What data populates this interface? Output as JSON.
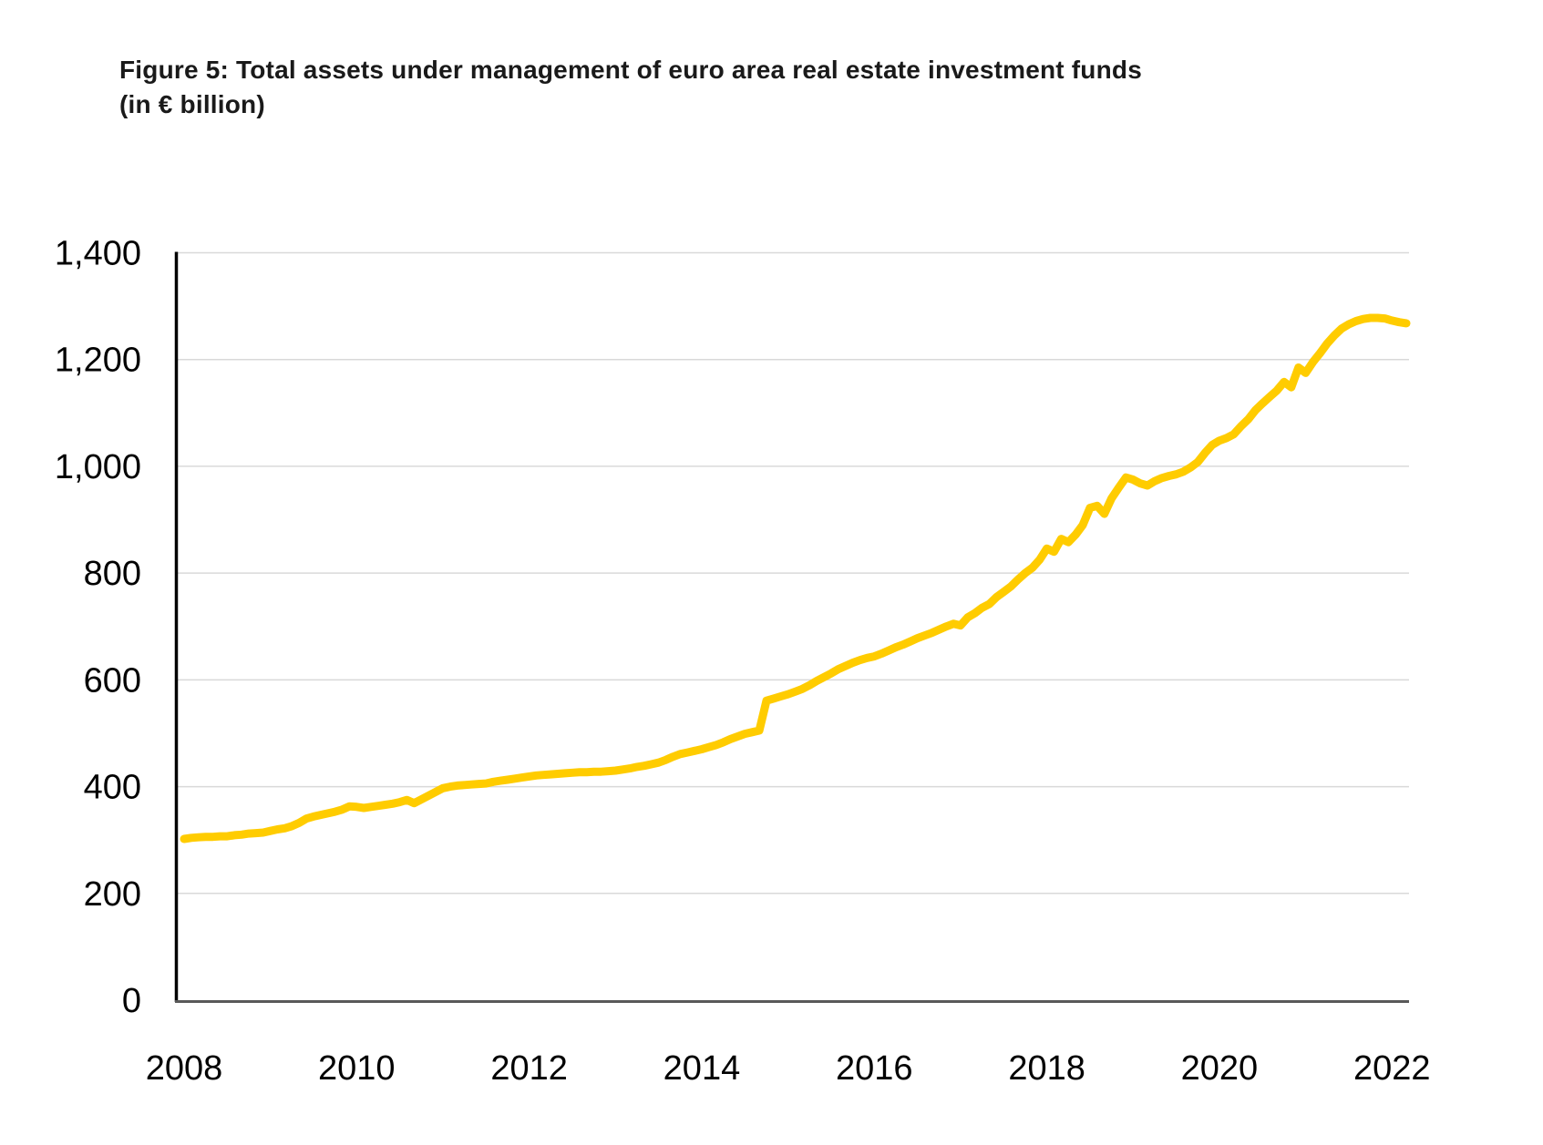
{
  "title": {
    "line1": "Figure 5: Total assets under management of euro area real estate investment funds",
    "line2": "(in € billion)"
  },
  "colors": {
    "line": "#FFCC00",
    "gridline": "#D9D9D9",
    "y_axis": "#000000",
    "x_axis": "#595959",
    "text": "#000000"
  },
  "chart_data": {
    "type": "line",
    "title": "Figure 5: Total assets under management of euro area real estate investment funds (in € billion)",
    "series_name": "Total assets under management of euro area real estate investment funds",
    "unit": "EUR billion",
    "frequency": "monthly",
    "x_start": {
      "year": 2008,
      "month": 1
    },
    "x_end": {
      "year": 2022,
      "month": 3
    },
    "values": [
      302,
      304,
      305,
      306,
      306,
      307,
      307,
      309,
      310,
      312,
      313,
      314,
      317,
      320,
      322,
      326,
      332,
      340,
      344,
      347,
      350,
      353,
      357,
      363,
      362,
      360,
      362,
      364,
      366,
      368,
      371,
      375,
      369,
      376,
      383,
      390,
      397,
      400,
      402,
      403,
      404,
      405,
      406,
      409,
      411,
      413,
      415,
      417,
      419,
      421,
      422,
      423,
      424,
      425,
      426,
      427,
      427,
      428,
      428,
      429,
      430,
      432,
      434,
      437,
      439,
      442,
      445,
      450,
      456,
      461,
      464,
      467,
      470,
      474,
      478,
      483,
      489,
      494,
      499,
      502,
      505,
      561,
      565,
      569,
      573,
      578,
      583,
      590,
      598,
      605,
      612,
      620,
      626,
      632,
      637,
      641,
      644,
      649,
      655,
      661,
      666,
      672,
      678,
      683,
      688,
      694,
      700,
      705,
      702,
      717,
      725,
      735,
      742,
      755,
      765,
      775,
      788,
      800,
      810,
      825,
      846,
      840,
      864,
      858,
      872,
      890,
      922,
      926,
      911,
      940,
      960,
      979,
      975,
      968,
      964,
      972,
      978,
      982,
      985,
      990,
      998,
      1008,
      1025,
      1040,
      1048,
      1053,
      1060,
      1075,
      1088,
      1105,
      1118,
      1130,
      1142,
      1158,
      1148,
      1185,
      1175,
      1195,
      1212,
      1230,
      1245,
      1258,
      1266,
      1272,
      1276,
      1278,
      1278,
      1277,
      1273,
      1270,
      1268
    ],
    "annotations": [
      "Level jump from ~505 to ~560 between Sep 2014 and Oct 2014"
    ],
    "xlabel": "",
    "ylabel": "",
    "x_tick_labels": [
      "2008",
      "2010",
      "2012",
      "2014",
      "2016",
      "2018",
      "2020",
      "2022"
    ],
    "x_tick_years": [
      2008,
      2010,
      2012,
      2014,
      2016,
      2018,
      2020,
      2022
    ],
    "y_ticks": [
      0,
      200,
      400,
      600,
      800,
      1000,
      1200,
      1400
    ],
    "y_tick_labels": [
      "0",
      "200",
      "400",
      "600",
      "800",
      "1,000",
      "1,200",
      "1,400"
    ],
    "ylim": [
      0,
      1400
    ],
    "grid": "horizontal",
    "legend": "none",
    "line_color": "#FFCC00"
  }
}
